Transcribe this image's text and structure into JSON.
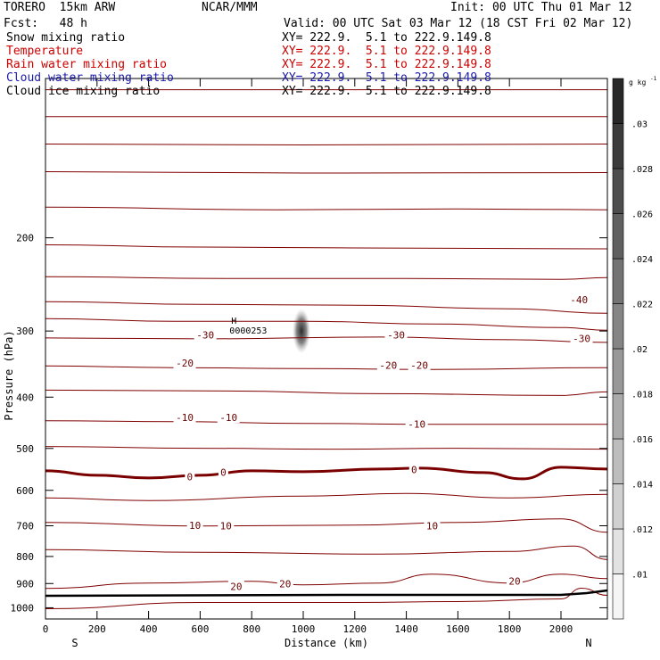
{
  "header": {
    "model": "TORERO  15km ARW",
    "center": "NCAR/MMM",
    "init": "Init: 00 UTC Thu 01 Mar 12",
    "fcst": "Fcst:   48 h",
    "valid": "Valid: 00 UTC Sat 03 Mar 12 (18 CST Fri 02 Mar 12)"
  },
  "fields": [
    {
      "label": "Snow mixing ratio",
      "xy": "XY= 222.9.  5.1 to 222.9.149.8",
      "color": "#000000"
    },
    {
      "label": "Temperature",
      "xy": "XY= 222.9.  5.1 to 222.9.149.8",
      "color": "#cc0000"
    },
    {
      "label": "Rain water mixing ratio",
      "xy": "XY= 222.9.  5.1 to 222.9.149.8",
      "color": "#cc0000"
    },
    {
      "label": "Cloud water mixing ratio",
      "xy": "XY= 222.9.  5.1 to 222.9.149.8",
      "color": "#1a1aaa"
    },
    {
      "label": "Cloud ice mixing ratio",
      "xy": "XY= 222.9.  5.1 to 222.9.149.8",
      "color": "#000000"
    }
  ],
  "chart_data": {
    "type": "contour-cross-section",
    "xlabel": "Distance (km)",
    "ylabel": "Pressure (hPa)",
    "xlim": [
      0,
      2180
    ],
    "x_ticks": [
      0,
      200,
      400,
      600,
      800,
      1000,
      1200,
      1400,
      1600,
      1800,
      2000
    ],
    "y_scale": "log",
    "ylim": [
      100,
      1050
    ],
    "y_ticks": [
      200,
      300,
      400,
      500,
      600,
      700,
      800,
      900,
      1000
    ],
    "x_end_labels": {
      "left": "S",
      "right": "N"
    },
    "colorbar": {
      "unit": "g kg",
      "unit_exp": "-1",
      "ticks": [
        ".01",
        ".012",
        ".014",
        ".016",
        ".018",
        ".02",
        ".022",
        ".024",
        ".026",
        ".028",
        ".03"
      ]
    },
    "high_marker": {
      "symbol": "H",
      "value": "0000253",
      "x": 790,
      "p": 300
    },
    "snow_maximum": {
      "x": 1000,
      "p": 300
    },
    "temperature_contours": {
      "color": "#800000",
      "freezing_level_color": "#7a0000",
      "ground_line_color": "#000000",
      "lines": [
        {
          "base_p": 105,
          "pts": [
            [
              0,
              0
            ],
            [
              800,
              0
            ],
            [
              1600,
              0
            ],
            [
              2180,
              0
            ]
          ]
        },
        {
          "base_p": 118,
          "pts": [
            [
              0,
              0
            ],
            [
              1000,
              0
            ],
            [
              2180,
              0
            ]
          ]
        },
        {
          "base_p": 133,
          "pts": [
            [
              0,
              0
            ],
            [
              1000,
              2
            ],
            [
              2180,
              0
            ]
          ]
        },
        {
          "base_p": 150,
          "pts": [
            [
              0,
              0
            ],
            [
              1000,
              3
            ],
            [
              2180,
              2
            ]
          ]
        },
        {
          "base_p": 175,
          "pts": [
            [
              0,
              0
            ],
            [
              900,
              6
            ],
            [
              1600,
              4
            ],
            [
              2180,
              6
            ]
          ]
        },
        {
          "base_p": 205,
          "pts": [
            [
              0,
              3
            ],
            [
              600,
              8
            ],
            [
              1200,
              10
            ],
            [
              2180,
              12
            ]
          ]
        },
        {
          "base_p": 235,
          "pts": [
            [
              0,
              4
            ],
            [
              700,
              8
            ],
            [
              1400,
              8
            ],
            [
              2000,
              10
            ],
            [
              2180,
              6
            ]
          ]
        },
        {
          "base_p": 262,
          "pts": [
            [
              0,
              4
            ],
            [
              600,
              10
            ],
            [
              1200,
              12
            ],
            [
              1800,
              20
            ],
            [
              2180,
              30
            ]
          ]
        },
        {
          "base_p": 282,
          "pts": [
            [
              0,
              4
            ],
            [
              500,
              10
            ],
            [
              1000,
              10
            ],
            [
              1500,
              16
            ],
            [
              2000,
              24
            ],
            [
              2180,
              30
            ]
          ]
        },
        {
          "base_p": 308,
          "pts": [
            [
              0,
              2
            ],
            [
              600,
              4
            ],
            [
              1300,
              0
            ],
            [
              1800,
              6
            ],
            [
              2180,
              12
            ]
          ]
        },
        {
          "base_p": 345,
          "pts": [
            [
              0,
              6
            ],
            [
              500,
              10
            ],
            [
              1000,
              12
            ],
            [
              1500,
              14
            ],
            [
              2180,
              10
            ]
          ]
        },
        {
          "base_p": 385,
          "pts": [
            [
              0,
              4
            ],
            [
              700,
              6
            ],
            [
              1300,
              12
            ],
            [
              2000,
              16
            ],
            [
              2180,
              8
            ]
          ]
        },
        {
          "base_p": 438,
          "pts": [
            [
              0,
              6
            ],
            [
              500,
              8
            ],
            [
              1000,
              12
            ],
            [
              1500,
              14
            ],
            [
              2180,
              14
            ]
          ]
        },
        {
          "base_p": 490,
          "pts": [
            [
              0,
              6
            ],
            [
              600,
              10
            ],
            [
              1100,
              12
            ],
            [
              1600,
              10
            ],
            [
              2180,
              12
            ]
          ]
        },
        {
          "base_p": 562,
          "freezing": true,
          "pts": [
            [
              0,
              -10
            ],
            [
              200,
              0
            ],
            [
              400,
              6
            ],
            [
              600,
              0
            ],
            [
              800,
              -10
            ],
            [
              1000,
              -8
            ],
            [
              1300,
              -14
            ],
            [
              1450,
              -16
            ],
            [
              1700,
              -6
            ],
            [
              1850,
              8
            ],
            [
              2000,
              -18
            ],
            [
              2180,
              -14
            ]
          ]
        },
        {
          "base_p": 620,
          "pts": [
            [
              0,
              0
            ],
            [
              400,
              6
            ],
            [
              1000,
              -4
            ],
            [
              1400,
              -10
            ],
            [
              1800,
              0
            ],
            [
              2180,
              -8
            ]
          ]
        },
        {
          "base_p": 690,
          "pts": [
            [
              0,
              0
            ],
            [
              600,
              8
            ],
            [
              1200,
              6
            ],
            [
              1600,
              0
            ],
            [
              2000,
              -8
            ],
            [
              2180,
              22
            ]
          ]
        },
        {
          "base_p": 795,
          "pts": [
            [
              0,
              -12
            ],
            [
              600,
              -6
            ],
            [
              1300,
              -2
            ],
            [
              1800,
              -8
            ],
            [
              2050,
              -20
            ],
            [
              2180,
              10
            ]
          ]
        },
        {
          "base_p": 905,
          "pts": [
            [
              0,
              8
            ],
            [
              400,
              -4
            ],
            [
              800,
              -8
            ],
            [
              1000,
              0
            ],
            [
              1300,
              -4
            ],
            [
              1500,
              -24
            ],
            [
              1800,
              -4
            ],
            [
              2000,
              -24
            ],
            [
              2180,
              -14
            ]
          ]
        },
        {
          "base_p": 985,
          "pts": [
            [
              0,
              10
            ],
            [
              600,
              -4
            ],
            [
              1200,
              -4
            ],
            [
              1600,
              -6
            ],
            [
              2000,
              -12
            ],
            [
              2080,
              -36
            ],
            [
              2180,
              -20
            ]
          ]
        }
      ],
      "labels": [
        {
          "text": "-40",
          "x": 2070,
          "p": 262
        },
        {
          "text": "-30",
          "x": 620,
          "p": 305
        },
        {
          "text": "-30",
          "x": 1360,
          "p": 305
        },
        {
          "text": "-30",
          "x": 2080,
          "p": 310
        },
        {
          "text": "-20",
          "x": 540,
          "p": 345
        },
        {
          "text": "-20",
          "x": 1330,
          "p": 348
        },
        {
          "text": "-20",
          "x": 1450,
          "p": 348
        },
        {
          "text": "-10",
          "x": 540,
          "p": 437
        },
        {
          "text": "-10",
          "x": 710,
          "p": 437
        },
        {
          "text": "-10",
          "x": 1440,
          "p": 450
        },
        {
          "text": "0",
          "x": 560,
          "p": 566
        },
        {
          "text": "0",
          "x": 690,
          "p": 555
        },
        {
          "text": "0",
          "x": 1430,
          "p": 548
        },
        {
          "text": "10",
          "x": 580,
          "p": 698
        },
        {
          "text": "10",
          "x": 700,
          "p": 700
        },
        {
          "text": "10",
          "x": 1500,
          "p": 700
        },
        {
          "text": "20",
          "x": 740,
          "p": 912
        },
        {
          "text": "20",
          "x": 930,
          "p": 900
        },
        {
          "text": "20",
          "x": 1820,
          "p": 890
        }
      ]
    }
  }
}
